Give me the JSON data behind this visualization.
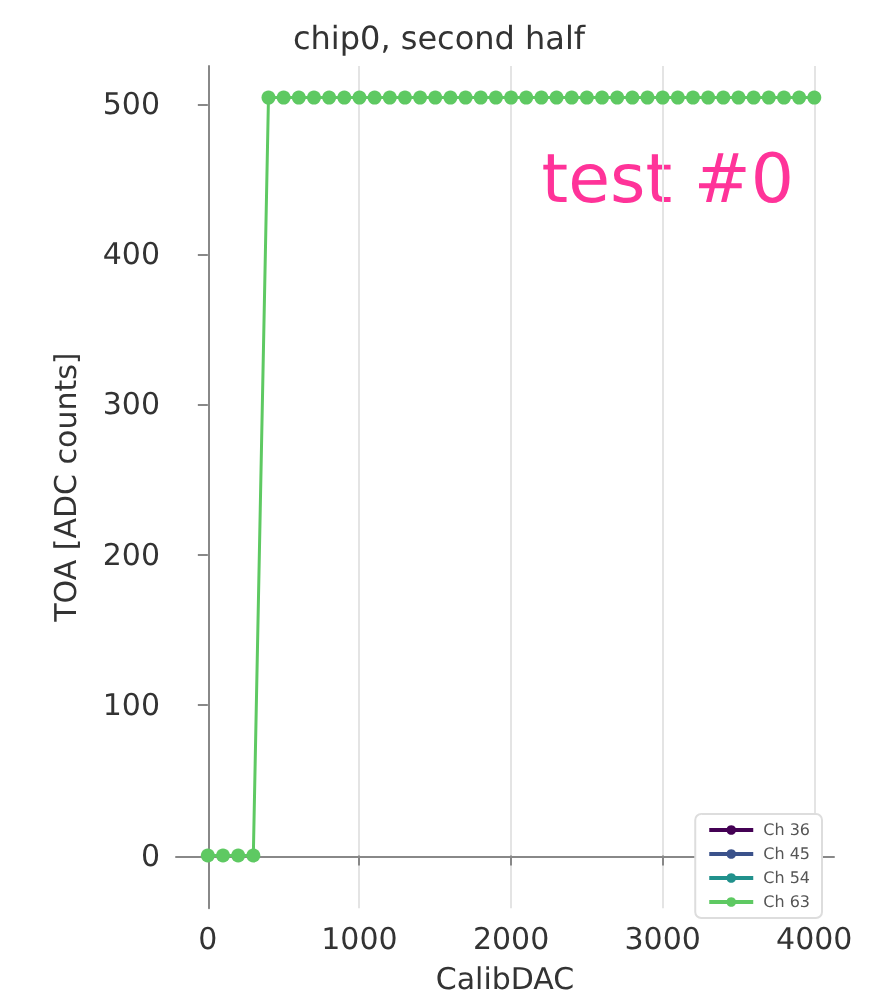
{
  "chart_data": {
    "type": "line",
    "title": "chip0, second half",
    "xlabel": "CalibDAC",
    "ylabel": "TOA [ADC counts]",
    "annotations": [
      "test #0"
    ],
    "x": [
      0,
      100,
      200,
      300,
      400,
      500,
      600,
      700,
      800,
      900,
      1000,
      1100,
      1200,
      1300,
      1400,
      1500,
      1600,
      1700,
      1800,
      1900,
      2000,
      2100,
      2200,
      2300,
      2400,
      2500,
      2600,
      2700,
      2800,
      2900,
      3000,
      3100,
      3200,
      3300,
      3400,
      3500,
      3600,
      3700,
      3800,
      3900,
      4000
    ],
    "series": [
      {
        "name": "Ch 36",
        "color": "#440154",
        "values": [
          null,
          null,
          null,
          null,
          null,
          null,
          null,
          null,
          null,
          null,
          null,
          null,
          null,
          null,
          null,
          null,
          null,
          null,
          null,
          null,
          null,
          null,
          null,
          null,
          null,
          null,
          null,
          null,
          null,
          null,
          null,
          null,
          null,
          null,
          null,
          null,
          null,
          null,
          null,
          null,
          null
        ]
      },
      {
        "name": "Ch 45",
        "color": "#3b528b",
        "values": [
          null,
          null,
          null,
          null,
          null,
          null,
          null,
          null,
          null,
          null,
          null,
          null,
          null,
          null,
          null,
          null,
          null,
          null,
          null,
          null,
          null,
          null,
          null,
          null,
          null,
          null,
          null,
          null,
          null,
          null,
          null,
          null,
          null,
          null,
          null,
          null,
          null,
          null,
          null,
          null,
          null
        ]
      },
      {
        "name": "Ch 54",
        "color": "#21918c",
        "values": [
          null,
          null,
          null,
          null,
          null,
          null,
          null,
          null,
          null,
          null,
          null,
          null,
          null,
          null,
          null,
          null,
          null,
          null,
          null,
          null,
          null,
          null,
          null,
          null,
          null,
          null,
          null,
          null,
          null,
          null,
          null,
          null,
          null,
          null,
          null,
          null,
          null,
          null,
          null,
          null,
          null
        ]
      },
      {
        "name": "Ch 63",
        "color": "#5ec962",
        "values": [
          0,
          0,
          0,
          0,
          504,
          504,
          504,
          504,
          504,
          504,
          504,
          504,
          504,
          504,
          504,
          504,
          504,
          504,
          504,
          504,
          504,
          504,
          504,
          504,
          504,
          504,
          504,
          504,
          504,
          504,
          504,
          504,
          504,
          504,
          504,
          504,
          504,
          504,
          504,
          504,
          504
        ]
      }
    ],
    "xlim": [
      -210,
      4130
    ],
    "xticks": [
      0,
      1000,
      2000,
      3000,
      4000
    ],
    "ylim": [
      -35,
      525
    ],
    "yticks": [
      0,
      100,
      200,
      300,
      400,
      500
    ],
    "grid": "x",
    "legend": "bottom right",
    "marker": "circle",
    "line_style": "solid"
  }
}
